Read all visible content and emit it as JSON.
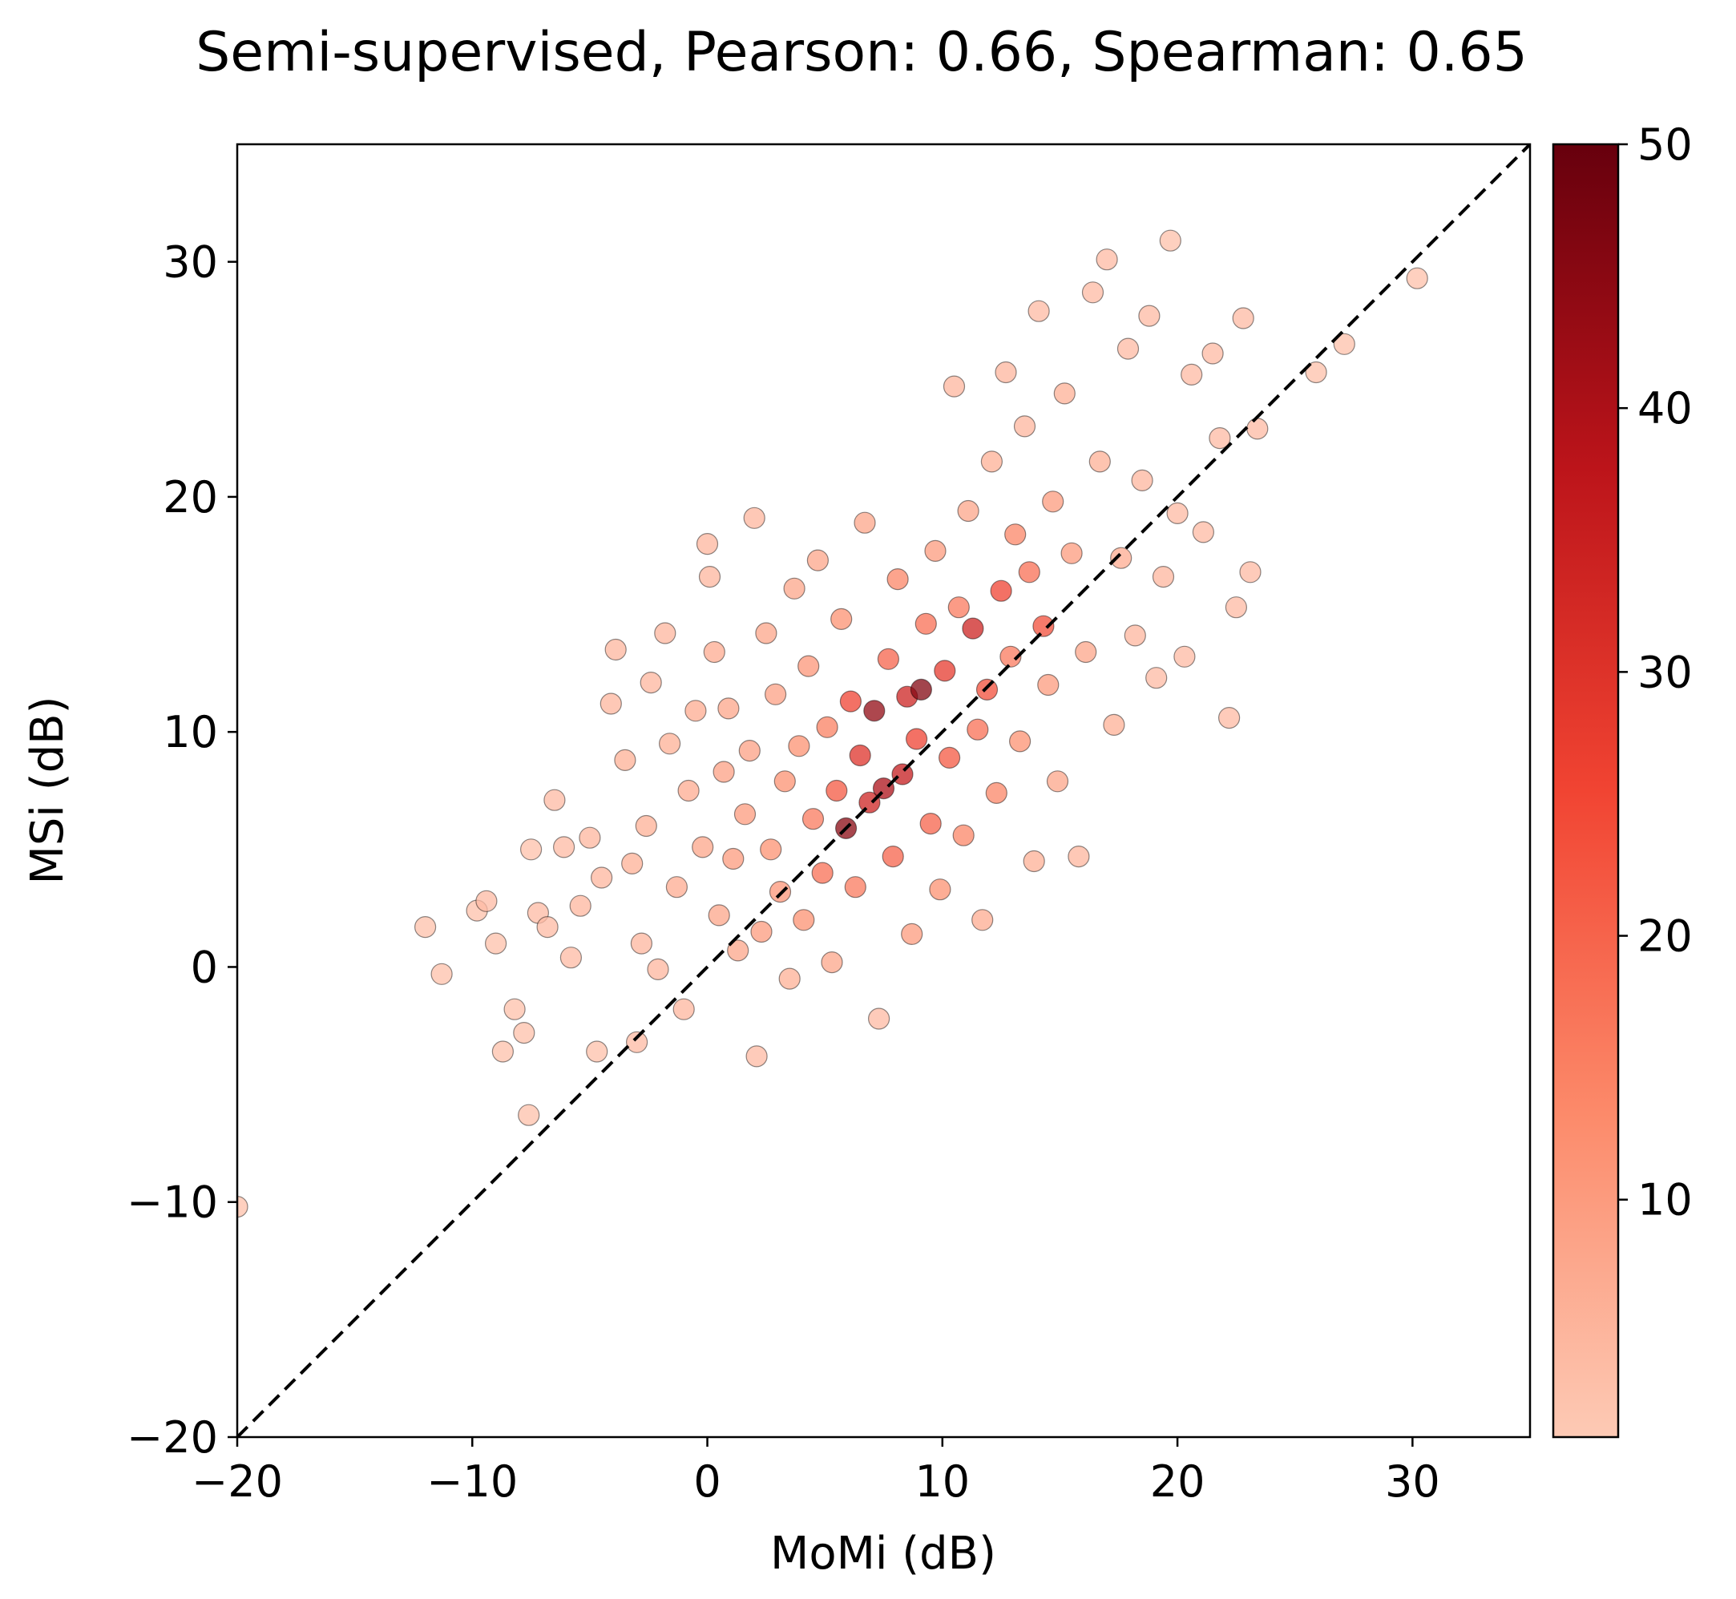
{
  "chart_data": {
    "type": "scatter",
    "title": "Semi-supervised, Pearson: 0.66, Spearman: 0.65",
    "xlabel": "MoMi (dB)",
    "ylabel": "MSi (dB)",
    "xlim": [
      -20,
      35
    ],
    "ylim": [
      -20,
      35
    ],
    "xticks": [
      -20,
      -10,
      0,
      10,
      20,
      30
    ],
    "yticks": [
      -20,
      -10,
      0,
      10,
      20,
      30
    ],
    "xtick_labels": [
      "−20",
      "−10",
      "0",
      "10",
      "20",
      "30"
    ],
    "ytick_labels": [
      "−20",
      "−10",
      "0",
      "10",
      "20",
      "30"
    ],
    "reference_line": {
      "style": "dashed",
      "color": "#000000",
      "x": [
        -20,
        35
      ],
      "y": [
        -20,
        35
      ]
    },
    "colorbar": {
      "range": [
        1,
        50
      ],
      "ticks": [
        10,
        20,
        30,
        40,
        50
      ],
      "tick_labels": [
        "10",
        "20",
        "30",
        "40",
        "50"
      ],
      "colormap": "Reds",
      "colors": [
        "#fdcab5",
        "#fc8a6a",
        "#f14432",
        "#bc141a",
        "#67000d"
      ]
    },
    "grid": false,
    "point_style": {
      "edge_color": "#000000",
      "alpha": 0.75
    },
    "series": [
      {
        "points": [
          [
            -20.0,
            -10.2,
            3
          ],
          [
            -12.0,
            1.7,
            3
          ],
          [
            -11.3,
            -0.3,
            3
          ],
          [
            -9.8,
            2.4,
            3
          ],
          [
            -9.4,
            2.8,
            4
          ],
          [
            -9.0,
            1.0,
            3
          ],
          [
            -8.7,
            -3.6,
            3
          ],
          [
            -8.2,
            -1.8,
            3
          ],
          [
            -7.8,
            -2.8,
            3
          ],
          [
            -7.6,
            -6.3,
            3
          ],
          [
            -7.5,
            5.0,
            3
          ],
          [
            -7.2,
            2.3,
            4
          ],
          [
            -6.8,
            1.7,
            4
          ],
          [
            -6.5,
            7.1,
            4
          ],
          [
            -6.1,
            5.1,
            4
          ],
          [
            -5.8,
            0.4,
            4
          ],
          [
            -5.4,
            2.6,
            5
          ],
          [
            -5.0,
            5.5,
            5
          ],
          [
            -4.7,
            -3.6,
            3
          ],
          [
            -4.5,
            3.8,
            5
          ],
          [
            -4.1,
            11.2,
            5
          ],
          [
            -3.9,
            13.5,
            5
          ],
          [
            -3.5,
            8.8,
            6
          ],
          [
            -3.2,
            4.4,
            6
          ],
          [
            -3.0,
            -3.2,
            4
          ],
          [
            -2.8,
            1.0,
            5
          ],
          [
            -2.6,
            6.0,
            6
          ],
          [
            -2.4,
            12.1,
            5
          ],
          [
            -2.1,
            -0.1,
            5
          ],
          [
            -1.8,
            14.2,
            5
          ],
          [
            -1.6,
            9.5,
            6
          ],
          [
            -1.3,
            3.4,
            7
          ],
          [
            -1.0,
            -1.8,
            5
          ],
          [
            -0.8,
            7.5,
            7
          ],
          [
            -0.5,
            10.9,
            7
          ],
          [
            -0.2,
            5.1,
            8
          ],
          [
            0.0,
            18.0,
            5
          ],
          [
            0.1,
            16.6,
            5
          ],
          [
            0.3,
            13.4,
            7
          ],
          [
            0.5,
            2.2,
            8
          ],
          [
            0.7,
            8.3,
            9
          ],
          [
            0.9,
            11.0,
            8
          ],
          [
            1.1,
            4.6,
            10
          ],
          [
            1.3,
            0.7,
            8
          ],
          [
            1.6,
            6.5,
            10
          ],
          [
            1.8,
            9.2,
            9
          ],
          [
            2.0,
            19.1,
            5
          ],
          [
            2.1,
            -3.8,
            4
          ],
          [
            2.3,
            1.5,
            10
          ],
          [
            2.5,
            14.2,
            8
          ],
          [
            2.7,
            5.0,
            12
          ],
          [
            2.9,
            11.6,
            9
          ],
          [
            3.1,
            3.2,
            11
          ],
          [
            3.3,
            7.9,
            12
          ],
          [
            3.5,
            -0.5,
            6
          ],
          [
            3.7,
            16.1,
            8
          ],
          [
            3.9,
            9.4,
            12
          ],
          [
            4.1,
            2.0,
            12
          ],
          [
            4.3,
            12.8,
            11
          ],
          [
            4.5,
            6.3,
            16
          ],
          [
            4.7,
            17.3,
            8
          ],
          [
            4.9,
            4.0,
            18
          ],
          [
            5.1,
            10.2,
            15
          ],
          [
            5.3,
            0.2,
            8
          ],
          [
            5.5,
            7.5,
            22
          ],
          [
            5.7,
            14.8,
            12
          ],
          [
            5.9,
            5.9,
            45
          ],
          [
            6.1,
            11.3,
            26
          ],
          [
            6.3,
            3.4,
            16
          ],
          [
            6.5,
            9.0,
            30
          ],
          [
            6.7,
            18.9,
            8
          ],
          [
            6.9,
            7.0,
            34
          ],
          [
            7.1,
            10.9,
            44
          ],
          [
            7.3,
            -2.2,
            4
          ],
          [
            7.5,
            7.6,
            40
          ],
          [
            7.7,
            13.1,
            20
          ],
          [
            7.9,
            4.7,
            20
          ],
          [
            8.1,
            16.5,
            14
          ],
          [
            8.3,
            8.2,
            36
          ],
          [
            8.5,
            11.5,
            34
          ],
          [
            8.7,
            1.4,
            10
          ],
          [
            8.9,
            9.7,
            26
          ],
          [
            9.1,
            11.8,
            46
          ],
          [
            9.3,
            14.6,
            18
          ],
          [
            9.5,
            6.1,
            20
          ],
          [
            9.7,
            17.7,
            10
          ],
          [
            9.9,
            3.3,
            12
          ],
          [
            10.1,
            12.6,
            28
          ],
          [
            10.3,
            8.9,
            22
          ],
          [
            10.5,
            24.7,
            5
          ],
          [
            10.7,
            15.3,
            16
          ],
          [
            10.9,
            5.6,
            14
          ],
          [
            11.1,
            19.4,
            8
          ],
          [
            11.3,
            14.4,
            34
          ],
          [
            11.5,
            10.1,
            18
          ],
          [
            11.7,
            2.0,
            7
          ],
          [
            11.9,
            11.8,
            24
          ],
          [
            12.1,
            21.5,
            6
          ],
          [
            12.3,
            7.4,
            14
          ],
          [
            12.5,
            16.0,
            26
          ],
          [
            12.7,
            25.3,
            5
          ],
          [
            12.9,
            13.2,
            16
          ],
          [
            13.1,
            18.4,
            14
          ],
          [
            13.3,
            9.6,
            12
          ],
          [
            13.5,
            23.0,
            5
          ],
          [
            13.7,
            16.8,
            18
          ],
          [
            13.9,
            4.5,
            6
          ],
          [
            14.1,
            27.9,
            4
          ],
          [
            14.3,
            14.5,
            24
          ],
          [
            14.5,
            12.0,
            10
          ],
          [
            14.7,
            19.8,
            10
          ],
          [
            14.9,
            7.9,
            8
          ],
          [
            15.2,
            24.4,
            6
          ],
          [
            15.5,
            17.6,
            10
          ],
          [
            15.8,
            4.7,
            5
          ],
          [
            16.1,
            13.4,
            8
          ],
          [
            16.4,
            28.7,
            4
          ],
          [
            16.7,
            21.5,
            6
          ],
          [
            17.0,
            30.1,
            4
          ],
          [
            17.3,
            10.3,
            6
          ],
          [
            17.6,
            17.4,
            7
          ],
          [
            17.9,
            26.3,
            4
          ],
          [
            18.2,
            14.1,
            5
          ],
          [
            18.5,
            20.7,
            5
          ],
          [
            18.8,
            27.7,
            4
          ],
          [
            19.1,
            12.3,
            4
          ],
          [
            19.4,
            16.6,
            5
          ],
          [
            19.7,
            30.9,
            3
          ],
          [
            20.0,
            19.3,
            4
          ],
          [
            20.3,
            13.2,
            4
          ],
          [
            20.6,
            25.2,
            4
          ],
          [
            21.1,
            18.5,
            4
          ],
          [
            21.5,
            26.1,
            4
          ],
          [
            21.8,
            22.5,
            4
          ],
          [
            22.2,
            10.6,
            4
          ],
          [
            22.5,
            15.3,
            4
          ],
          [
            22.8,
            27.6,
            4
          ],
          [
            23.1,
            16.8,
            4
          ],
          [
            23.4,
            22.9,
            4
          ],
          [
            25.9,
            25.3,
            3
          ],
          [
            27.1,
            26.5,
            3
          ],
          [
            30.2,
            29.3,
            3
          ]
        ]
      }
    ]
  }
}
